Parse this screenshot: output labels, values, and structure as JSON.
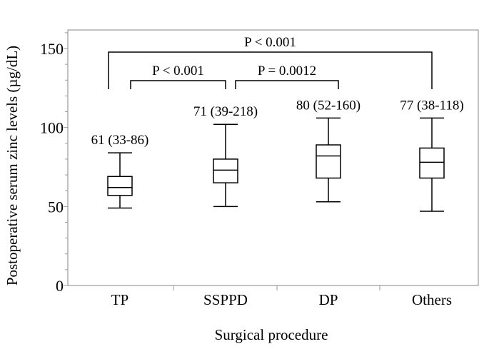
{
  "chart_data": {
    "type": "box",
    "xlabel": "Surgical procedure",
    "ylabel": "Postoperative serum zinc levels (µg/dL)",
    "ylim": [
      0,
      160
    ],
    "yticks": [
      "0",
      "50",
      "100",
      "150"
    ],
    "yticks_values": [
      0,
      50,
      100,
      150
    ],
    "minor_tick_step": 10,
    "categories": [
      "TP",
      "SSPPD",
      "DP",
      "Others"
    ],
    "boxes": [
      {
        "category": "TP",
        "min": 49,
        "q1": 57,
        "median": 62,
        "q3": 69,
        "max": 84,
        "label": "61 (33-86)"
      },
      {
        "category": "SSPPD",
        "min": 50,
        "q1": 65,
        "median": 73,
        "q3": 80,
        "max": 102,
        "label": "71 (39-218)"
      },
      {
        "category": "DP",
        "min": 53,
        "q1": 68,
        "median": 82,
        "q3": 89,
        "max": 106,
        "label": "80 (52-160)"
      },
      {
        "category": "Others",
        "min": 47,
        "q1": 68,
        "median": 78,
        "q3": 87,
        "max": 106,
        "label": "77 (38-118)"
      }
    ],
    "comparisons": [
      {
        "from": "TP",
        "to": "Others",
        "label": "P < 0.001",
        "level": 140
      },
      {
        "from": "TP",
        "to": "SSPPD",
        "label": "P < 0.001",
        "level": 120
      },
      {
        "from": "SSPPD",
        "to": "DP",
        "label": "P = 0.0012",
        "level": 120
      }
    ],
    "grid": false
  }
}
